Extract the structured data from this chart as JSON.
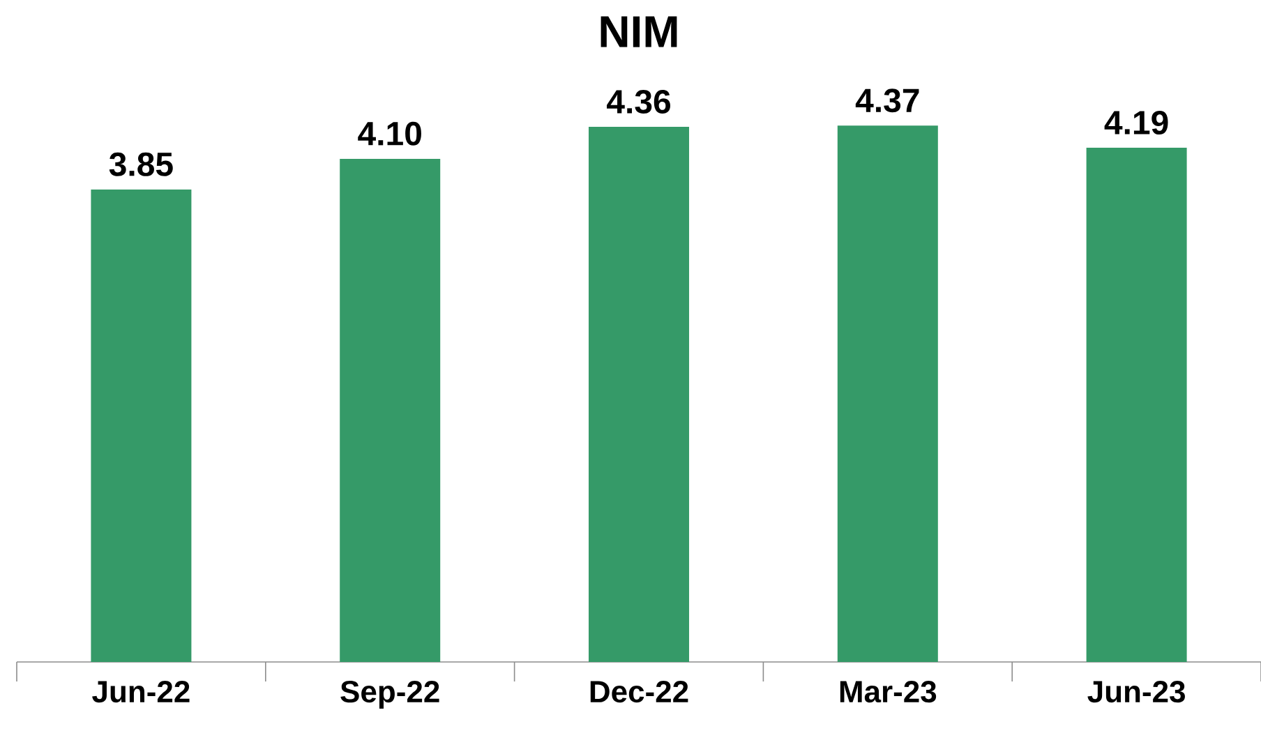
{
  "chart_data": {
    "type": "bar",
    "title": "NIM",
    "categories": [
      "Jun-22",
      "Sep-22",
      "Dec-22",
      "Mar-23",
      "Jun-23"
    ],
    "values": [
      3.85,
      4.1,
      4.36,
      4.37,
      4.19
    ],
    "value_labels": [
      "3.85",
      "4.10",
      "4.36",
      "4.37",
      "4.19"
    ],
    "color": "#359a68"
  }
}
